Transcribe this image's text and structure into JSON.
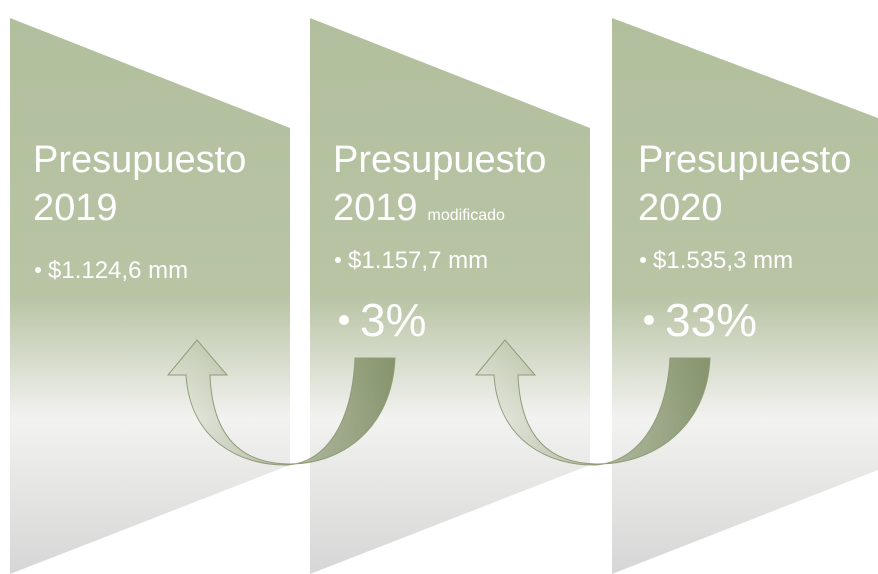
{
  "panels": [
    {
      "title": "Presupuesto",
      "year": "2019",
      "items": [
        "$1.124,6 mm"
      ]
    },
    {
      "title": "Presupuesto",
      "year": "2019",
      "note": "modificado",
      "items": [
        "$1.157,7 mm"
      ],
      "change": "3%"
    },
    {
      "title": "Presupuesto",
      "year": "2020",
      "items": [
        "$1.535,3 mm"
      ],
      "change": "33%"
    }
  ]
}
